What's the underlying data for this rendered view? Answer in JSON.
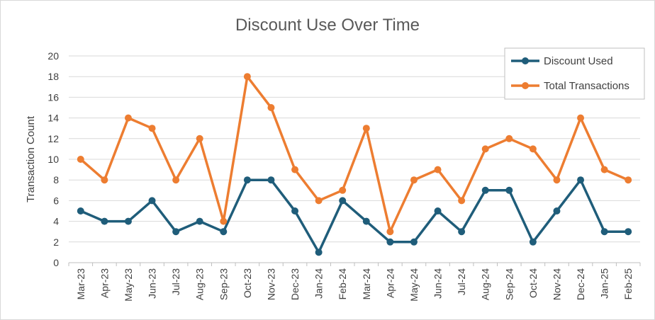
{
  "chart_data": {
    "type": "line",
    "title": "Discount Use Over Time",
    "xlabel": "",
    "ylabel": "Transaction Count",
    "ylim": [
      0,
      20
    ],
    "yticks": [
      "0",
      "2",
      "4",
      "6",
      "8",
      "10",
      "12",
      "14",
      "16",
      "18",
      "20"
    ],
    "grid": true,
    "legend_position": "top-right",
    "categories": [
      "Mar-23",
      "Apr-23",
      "May-23",
      "Jun-23",
      "Jul-23",
      "Aug-23",
      "Sep-23",
      "Oct-23",
      "Nov-23",
      "Dec-23",
      "Jan-24",
      "Feb-24",
      "Mar-24",
      "Apr-24",
      "May-24",
      "Jun-24",
      "Jul-24",
      "Aug-24",
      "Sep-24",
      "Oct-24",
      "Nov-24",
      "Dec-24",
      "Jan-25",
      "Feb-25"
    ],
    "series": [
      {
        "name": "Discount Used",
        "color": "#1f5d7a",
        "values": [
          5,
          4,
          4,
          6,
          3,
          4,
          3,
          8,
          8,
          5,
          1,
          6,
          4,
          2,
          2,
          5,
          3,
          7,
          7,
          2,
          5,
          8,
          3,
          3
        ]
      },
      {
        "name": "Total Transactions",
        "color": "#ed7d31",
        "values": [
          10,
          8,
          14,
          13,
          8,
          12,
          4,
          18,
          15,
          9,
          6,
          7,
          13,
          3,
          8,
          9,
          6,
          11,
          12,
          11,
          8,
          14,
          9,
          8
        ]
      }
    ]
  }
}
